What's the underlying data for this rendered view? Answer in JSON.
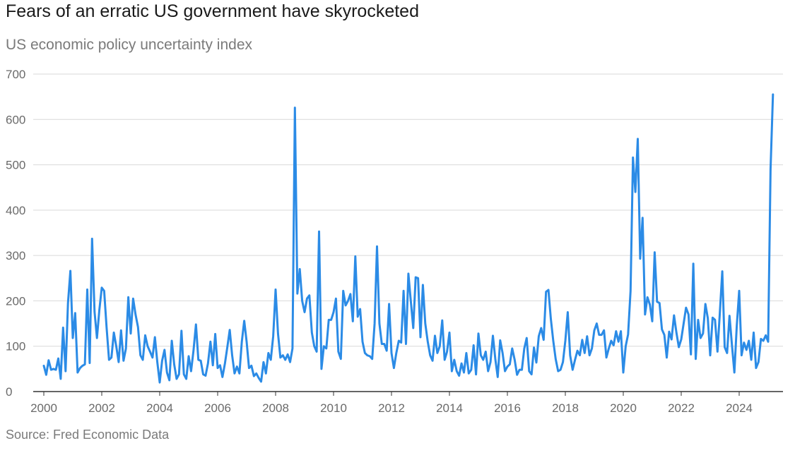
{
  "title": "Fears of an erratic US government have skyrocketed",
  "subtitle": "US economic policy uncertainty index",
  "source": "Source: Fred Economic Data",
  "colors": {
    "line": "#2b8be6",
    "grid": "#d9d9d9",
    "axis": "#333333",
    "text": "#6a6a6a"
  },
  "chart_data": {
    "type": "line",
    "title": "Fears of an erratic US government have skyrocketed",
    "subtitle": "US economic policy uncertainty index",
    "xlabel": "",
    "ylabel": "",
    "xlim": [
      2000,
      2025.25
    ],
    "ylim": [
      0,
      700
    ],
    "yticks": [
      0,
      100,
      200,
      300,
      400,
      500,
      600,
      700
    ],
    "xticks": [
      2000,
      2002,
      2004,
      2006,
      2008,
      2010,
      2012,
      2014,
      2016,
      2018,
      2020,
      2022,
      2024
    ],
    "grid": true,
    "series": [
      {
        "x": [
          2000.0,
          2000.083,
          2000.167,
          2000.25,
          2000.333,
          2000.417,
          2000.5,
          2000.583,
          2000.667,
          2000.75,
          2000.833,
          2000.917,
          2001.0,
          2001.083,
          2001.167,
          2001.25,
          2001.333,
          2001.417,
          2001.5,
          2001.583,
          2001.667,
          2001.75,
          2001.833,
          2001.917,
          2002.0,
          2002.083,
          2002.167,
          2002.25,
          2002.333,
          2002.417,
          2002.5,
          2002.583,
          2002.667,
          2002.75,
          2002.833,
          2002.917,
          2003.0,
          2003.083,
          2003.167,
          2003.25,
          2003.333,
          2003.417,
          2003.5,
          2003.583,
          2003.667,
          2003.75,
          2003.833,
          2003.917,
          2004.0,
          2004.083,
          2004.167,
          2004.25,
          2004.333,
          2004.417,
          2004.5,
          2004.583,
          2004.667,
          2004.75,
          2004.833,
          2004.917,
          2005.0,
          2005.083,
          2005.167,
          2005.25,
          2005.333,
          2005.417,
          2005.5,
          2005.583,
          2005.667,
          2005.75,
          2005.833,
          2005.917,
          2006.0,
          2006.083,
          2006.167,
          2006.25,
          2006.333,
          2006.417,
          2006.5,
          2006.583,
          2006.667,
          2006.75,
          2006.833,
          2006.917,
          2007.0,
          2007.083,
          2007.167,
          2007.25,
          2007.333,
          2007.417,
          2007.5,
          2007.583,
          2007.667,
          2007.75,
          2007.833,
          2007.917,
          2008.0,
          2008.083,
          2008.167,
          2008.25,
          2008.333,
          2008.417,
          2008.5,
          2008.583,
          2008.667,
          2008.75,
          2008.833,
          2008.917,
          2009.0,
          2009.083,
          2009.167,
          2009.25,
          2009.333,
          2009.417,
          2009.5,
          2009.583,
          2009.667,
          2009.75,
          2009.833,
          2009.917,
          2010.0,
          2010.083,
          2010.167,
          2010.25,
          2010.333,
          2010.417,
          2010.5,
          2010.583,
          2010.667,
          2010.75,
          2010.833,
          2010.917,
          2011.0,
          2011.083,
          2011.167,
          2011.25,
          2011.333,
          2011.417,
          2011.5,
          2011.583,
          2011.667,
          2011.75,
          2011.833,
          2011.917,
          2012.0,
          2012.083,
          2012.167,
          2012.25,
          2012.333,
          2012.417,
          2012.5,
          2012.583,
          2012.667,
          2012.75,
          2012.833,
          2012.917,
          2013.0,
          2013.083,
          2013.167,
          2013.25,
          2013.333,
          2013.417,
          2013.5,
          2013.583,
          2013.667,
          2013.75,
          2013.833,
          2013.917,
          2014.0,
          2014.083,
          2014.167,
          2014.25,
          2014.333,
          2014.417,
          2014.5,
          2014.583,
          2014.667,
          2014.75,
          2014.833,
          2014.917,
          2015.0,
          2015.083,
          2015.167,
          2015.25,
          2015.333,
          2015.417,
          2015.5,
          2015.583,
          2015.667,
          2015.75,
          2015.833,
          2015.917,
          2016.0,
          2016.083,
          2016.167,
          2016.25,
          2016.333,
          2016.417,
          2016.5,
          2016.583,
          2016.667,
          2016.75,
          2016.833,
          2016.917,
          2017.0,
          2017.083,
          2017.167,
          2017.25,
          2017.333,
          2017.417,
          2017.5,
          2017.583,
          2017.667,
          2017.75,
          2017.833,
          2017.917,
          2018.0,
          2018.083,
          2018.167,
          2018.25,
          2018.333,
          2018.417,
          2018.5,
          2018.583,
          2018.667,
          2018.75,
          2018.833,
          2018.917,
          2019.0,
          2019.083,
          2019.167,
          2019.25,
          2019.333,
          2019.417,
          2019.5,
          2019.583,
          2019.667,
          2019.75,
          2019.833,
          2019.917,
          2020.0,
          2020.083,
          2020.167,
          2020.25,
          2020.333,
          2020.417,
          2020.5,
          2020.583,
          2020.667,
          2020.75,
          2020.833,
          2020.917,
          2021.0,
          2021.083,
          2021.167,
          2021.25,
          2021.333,
          2021.417,
          2021.5,
          2021.583,
          2021.667,
          2021.75,
          2021.833,
          2021.917,
          2022.0,
          2022.083,
          2022.167,
          2022.25,
          2022.333,
          2022.417,
          2022.5,
          2022.583,
          2022.667,
          2022.75,
          2022.833,
          2022.917,
          2023.0,
          2023.083,
          2023.167,
          2023.25,
          2023.333,
          2023.417,
          2023.5,
          2023.583,
          2023.667,
          2023.75,
          2023.833,
          2023.917,
          2024.0,
          2024.083,
          2024.167,
          2024.25,
          2024.333,
          2024.417,
          2024.5,
          2024.583,
          2024.667,
          2024.75,
          2024.833,
          2024.917,
          2025.0,
          2025.083,
          2025.167
        ],
        "values": [
          57,
          37,
          69,
          48,
          50,
          48,
          73,
          28,
          141,
          45,
          195,
          266,
          118,
          173,
          42,
          52,
          57,
          60,
          225,
          63,
          337,
          176,
          118,
          180,
          229,
          222,
          142,
          70,
          75,
          130,
          100,
          65,
          135,
          68,
          95,
          208,
          128,
          205,
          170,
          142,
          80,
          70,
          124,
          100,
          88,
          75,
          120,
          65,
          20,
          68,
          92,
          42,
          25,
          112,
          60,
          28,
          38,
          134,
          38,
          28,
          78,
          45,
          90,
          148,
          70,
          68,
          38,
          35,
          62,
          110,
          58,
          127,
          52,
          58,
          32,
          62,
          98,
          136,
          80,
          40,
          55,
          40,
          110,
          156,
          110,
          52,
          57,
          34,
          40,
          30,
          22,
          65,
          40,
          85,
          70,
          122,
          225,
          128,
          75,
          80,
          70,
          82,
          65,
          95,
          626,
          216,
          270,
          200,
          175,
          205,
          212,
          130,
          100,
          88,
          353,
          50,
          100,
          95,
          158,
          158,
          175,
          205,
          88,
          72,
          222,
          190,
          200,
          215,
          155,
          298,
          165,
          182,
          110,
          85,
          80,
          78,
          72,
          150,
          320,
          150,
          105,
          105,
          90,
          193,
          85,
          52,
          85,
          112,
          108,
          222,
          105,
          260,
          200,
          140,
          252,
          250,
          120,
          235,
          150,
          110,
          80,
          68,
          123,
          85,
          100,
          157,
          70,
          88,
          130,
          45,
          70,
          45,
          35,
          62,
          42,
          85,
          40,
          48,
          102,
          38,
          128,
          80,
          70,
          88,
          45,
          65,
          123,
          72,
          32,
          113,
          85,
          45,
          55,
          60,
          95,
          70,
          37,
          48,
          48,
          95,
          118,
          45,
          38,
          97,
          64,
          122,
          140,
          114,
          220,
          224,
          160,
          112,
          72,
          45,
          48,
          65,
          112,
          175,
          80,
          48,
          70,
          90,
          80,
          114,
          85,
          122,
          80,
          95,
          135,
          150,
          125,
          125,
          135,
          75,
          95,
          112,
          102,
          133,
          110,
          133,
          42,
          100,
          126,
          222,
          516,
          440,
          557,
          293,
          383,
          170,
          208,
          192,
          155,
          307,
          198,
          195,
          137,
          125,
          75,
          132,
          115,
          168,
          130,
          98,
          115,
          150,
          185,
          170,
          82,
          282,
          72,
          158,
          118,
          128,
          193,
          162,
          80,
          163,
          158,
          88,
          175,
          265,
          98,
          85,
          167,
          102,
          42,
          145,
          222,
          80,
          108,
          92,
          112,
          70,
          130,
          52,
          65,
          116,
          112,
          124,
          110,
          490,
          655
        ]
      }
    ]
  }
}
